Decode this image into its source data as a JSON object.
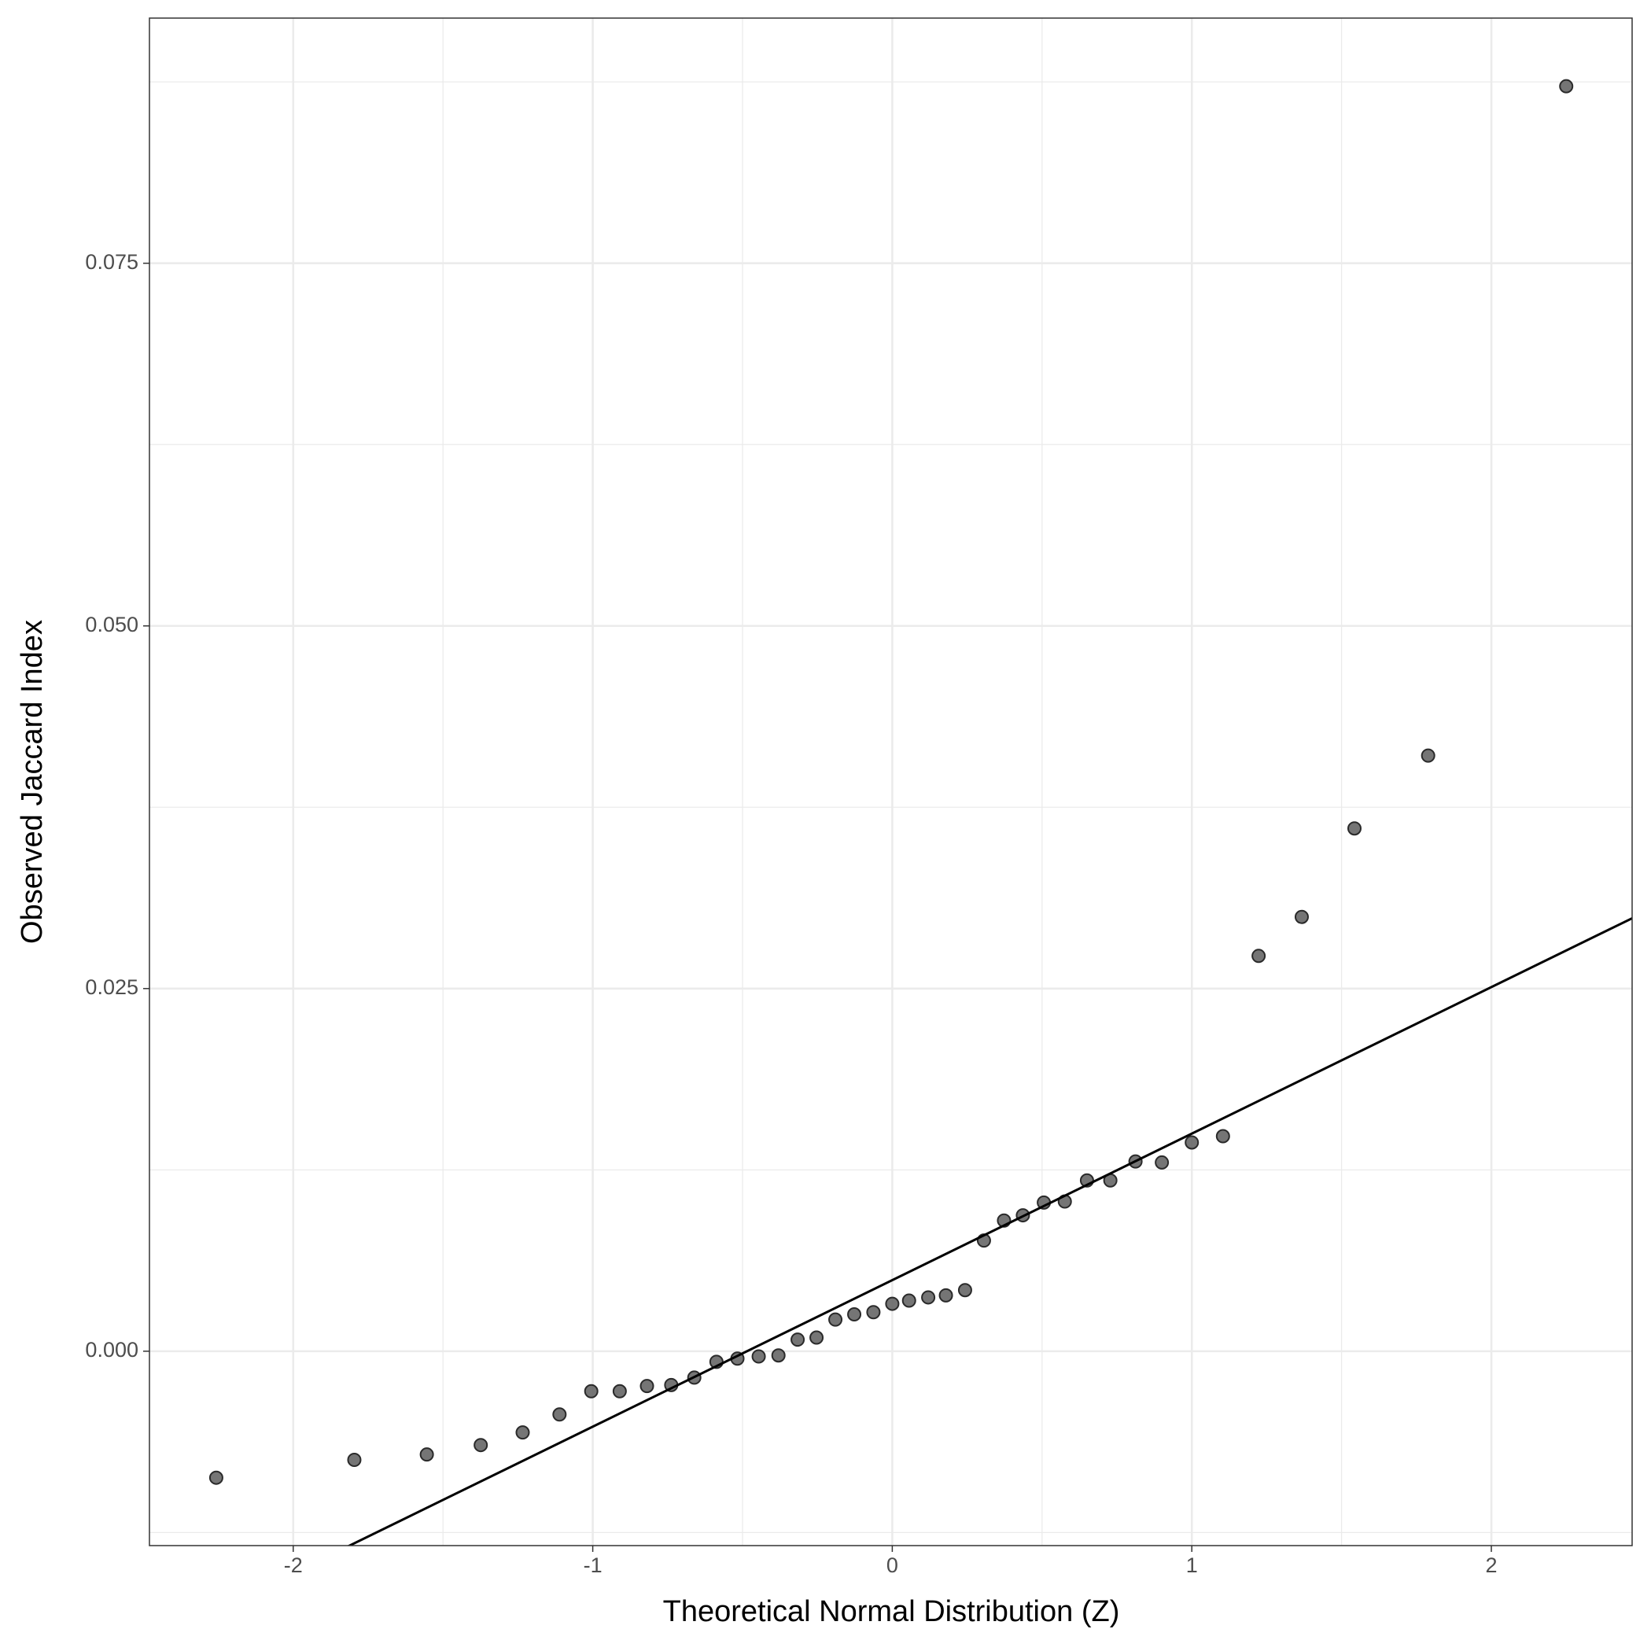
{
  "chart_data": {
    "type": "scatter",
    "x_label": "Theoretical Normal Distribution (Z)",
    "y_label": "Observed Jaccard Index",
    "xlim": [
      -2.48,
      2.47
    ],
    "ylim": [
      -0.0134,
      0.0919
    ],
    "xticks": [
      -2,
      -1,
      0,
      1,
      2
    ],
    "yticks": [
      {
        "value": 0,
        "label": "0.000"
      },
      0.025,
      {
        "value": 0.05,
        "label": "0.050"
      },
      0.075
    ],
    "x_minor_grid": [
      -1.5,
      -0.5,
      0.5,
      1.5
    ],
    "y_minor_grid": [
      -0.0125,
      0.0125,
      0.0375,
      0.0625,
      0.0875
    ],
    "grid": true,
    "color": "#666666",
    "reference_line": {
      "intercept": 0.0049,
      "slope": 0.0101,
      "color": "#000000"
    },
    "series": [
      {
        "name": "Observed",
        "color": "#666666",
        "x": [
          -2.257,
          -1.796,
          -1.554,
          -1.374,
          -1.234,
          -1.111,
          -1.005,
          -0.91,
          -0.819,
          -0.738,
          -0.661,
          -0.587,
          -0.517,
          -0.446,
          -0.38,
          -0.316,
          -0.253,
          -0.19,
          -0.127,
          -0.063,
          0.0,
          0.056,
          0.12,
          0.179,
          0.243,
          0.306,
          0.373,
          0.436,
          0.506,
          0.576,
          0.65,
          0.728,
          0.812,
          0.9,
          1.0,
          1.104,
          1.223,
          1.367,
          1.543,
          1.789,
          2.25
        ],
        "values": [
          -0.00872,
          -0.00749,
          -0.00712,
          -0.00647,
          -0.0056,
          -0.00436,
          -0.00276,
          -0.00276,
          -0.0024,
          -0.00233,
          -0.00182,
          -0.00073,
          -0.00051,
          -0.00036,
          -0.00029,
          0.0008,
          0.00094,
          0.00218,
          0.00254,
          0.00269,
          0.00327,
          0.00349,
          0.00371,
          0.00385,
          0.00421,
          0.00763,
          0.00901,
          0.00937,
          0.01025,
          0.01032,
          0.01177,
          0.01177,
          0.01308,
          0.01301,
          0.01439,
          0.01482,
          0.02725,
          0.02994,
          0.03604,
          0.04106,
          0.0872
        ]
      }
    ]
  }
}
